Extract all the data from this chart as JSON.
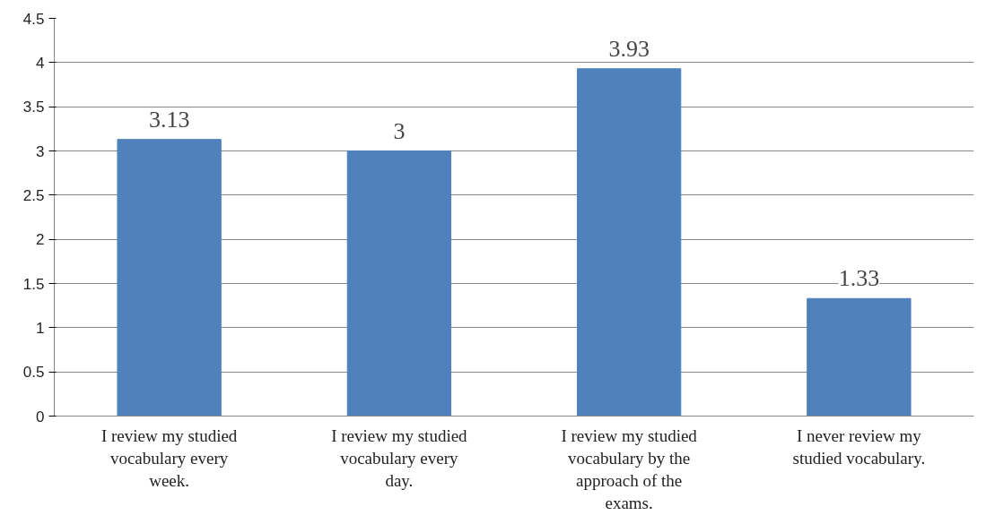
{
  "chart_data": {
    "type": "bar",
    "categories": [
      "I review my studied vocabulary every week.",
      "I review my studied vocabulary every day.",
      "I review my studied vocabulary by the approach of the exams.",
      "I never review my studied vocabulary."
    ],
    "values": [
      3.13,
      3,
      3.93,
      1.33
    ],
    "color": "#4f81bd",
    "ylim": [
      0,
      4.5
    ],
    "yticks": [
      0,
      0.5,
      1,
      1.5,
      2,
      2.5,
      3,
      3.5,
      4,
      4.5
    ],
    "grid": "y",
    "data_labels": true
  }
}
